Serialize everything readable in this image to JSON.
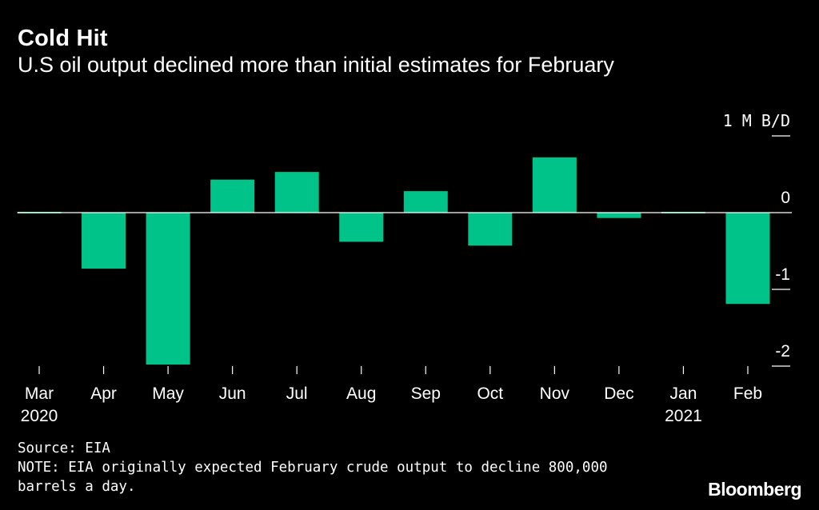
{
  "header": {
    "title": "Cold Hit",
    "subtitle": "U.S oil output declined more than initial estimates for February"
  },
  "chart_data": {
    "type": "bar",
    "title": "Cold Hit",
    "subtitle": "U.S oil output declined more than initial estimates for February",
    "unit_label": "1 M B/D",
    "categories": [
      "Mar",
      "Apr",
      "May",
      "Jun",
      "Jul",
      "Aug",
      "Sep",
      "Oct",
      "Nov",
      "Dec",
      "Jan",
      "Feb"
    ],
    "year_labels": {
      "Mar": "2020",
      "Jan": "2021"
    },
    "values": [
      -0.01,
      -0.73,
      -1.98,
      0.43,
      0.53,
      -0.38,
      0.28,
      -0.43,
      0.72,
      -0.07,
      -0.02,
      -1.19
    ],
    "y_ticks": [
      1,
      0,
      -1,
      -2
    ],
    "y_tick_labels": [
      "1 M B/D",
      "0",
      "-1",
      "-2"
    ],
    "ylim": [
      -2.05,
      1.05
    ],
    "bar_color": "#00c389",
    "xlabel": "",
    "ylabel": "",
    "grid": false
  },
  "footer": {
    "source": "Source: EIA",
    "note": "NOTE: EIA originally expected February crude output to decline 800,000 barrels a day."
  },
  "brand": "Bloomberg"
}
